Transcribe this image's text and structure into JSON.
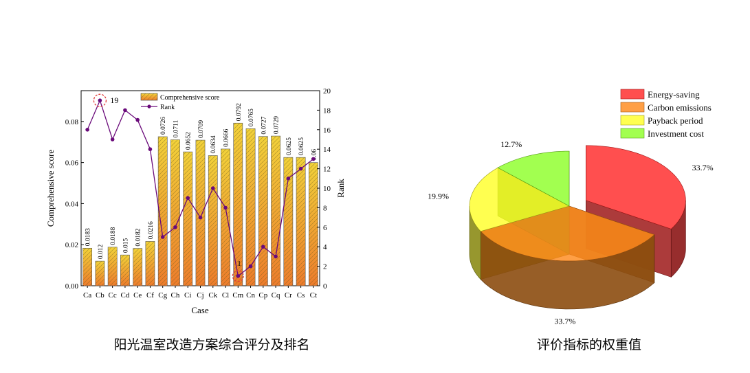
{
  "bar_chart": {
    "xlabel": "Case",
    "ylabel_left": "Comprehensive score",
    "ylabel_right": "Rank",
    "legend": {
      "bar": "Comprehensive score",
      "line": "Rank"
    },
    "caption": "阳光温室改造方案综合评分及排名",
    "annotations": {
      "max_rank": "19",
      "min_rank": "1"
    }
  },
  "pie_chart": {
    "caption": "评价指标的权重值"
  },
  "colors": {
    "bar_top": "#f2d23a",
    "bar_bottom": "#ee7c2c",
    "rank_line": "#6a0a7a",
    "highlight": "#e03a3a",
    "energy": "#ff2828",
    "carbon": "#ff8a1c",
    "payback": "#ffff2a",
    "investment": "#8dff2a"
  },
  "chart_data": [
    {
      "type": "bar",
      "title": "",
      "xlabel": "Case",
      "ylabel": "Comprehensive score",
      "y2label": "Rank",
      "categories": [
        "Ca",
        "Cb",
        "Cc",
        "Cd",
        "Ce",
        "Cf",
        "Cg",
        "Ch",
        "Ci",
        "Cj",
        "Ck",
        "Cl",
        "Cm",
        "Cn",
        "Cp",
        "Cq",
        "Cr",
        "Cs",
        "Ct"
      ],
      "series": [
        {
          "name": "Comprehensive score",
          "axis": "left",
          "values": [
            0.0183,
            0.012,
            0.0188,
            0.015,
            0.0182,
            0.0216,
            0.0726,
            0.0711,
            0.0652,
            0.0709,
            0.0634,
            0.0666,
            0.0792,
            0.0765,
            0.0727,
            0.0729,
            0.0625,
            0.0625,
            0.06
          ],
          "labels": [
            "0.0183",
            "0.012",
            "0.0188",
            "0.015",
            "0.0182",
            "0.0216",
            "0.0726",
            "0.0711",
            "0.0652",
            "0.0709",
            "0.0634",
            "0.0666",
            "0.0792",
            "0.0765",
            "0.0727",
            "0.0729",
            "0.0625",
            "0.0625",
            "0.06"
          ]
        },
        {
          "name": "Rank",
          "axis": "right",
          "type": "line",
          "values": [
            16,
            19,
            15,
            18,
            17,
            14,
            5,
            6,
            9,
            7,
            10,
            8,
            1,
            2,
            4,
            3,
            11,
            12,
            13
          ]
        }
      ],
      "ylim": [
        0,
        0.095
      ],
      "yticks": [
        "0.00",
        "0.02",
        "0.04",
        "0.06",
        "0.08"
      ],
      "y2lim": [
        0,
        20
      ],
      "y2ticks": [
        "0",
        "2",
        "4",
        "6",
        "8",
        "10",
        "12",
        "14",
        "16",
        "18",
        "20"
      ],
      "legend_position": "top"
    },
    {
      "type": "pie",
      "title": "",
      "labels": [
        "Energy-saving",
        "Carbon emissions",
        "Payback period",
        "Investment cost"
      ],
      "values": [
        33.7,
        33.7,
        19.9,
        12.7
      ],
      "value_labels": [
        "33.7%",
        "33.7%",
        "19.9%",
        "12.7%"
      ],
      "legend_position": "top-right",
      "style": "3d-exploded"
    }
  ]
}
